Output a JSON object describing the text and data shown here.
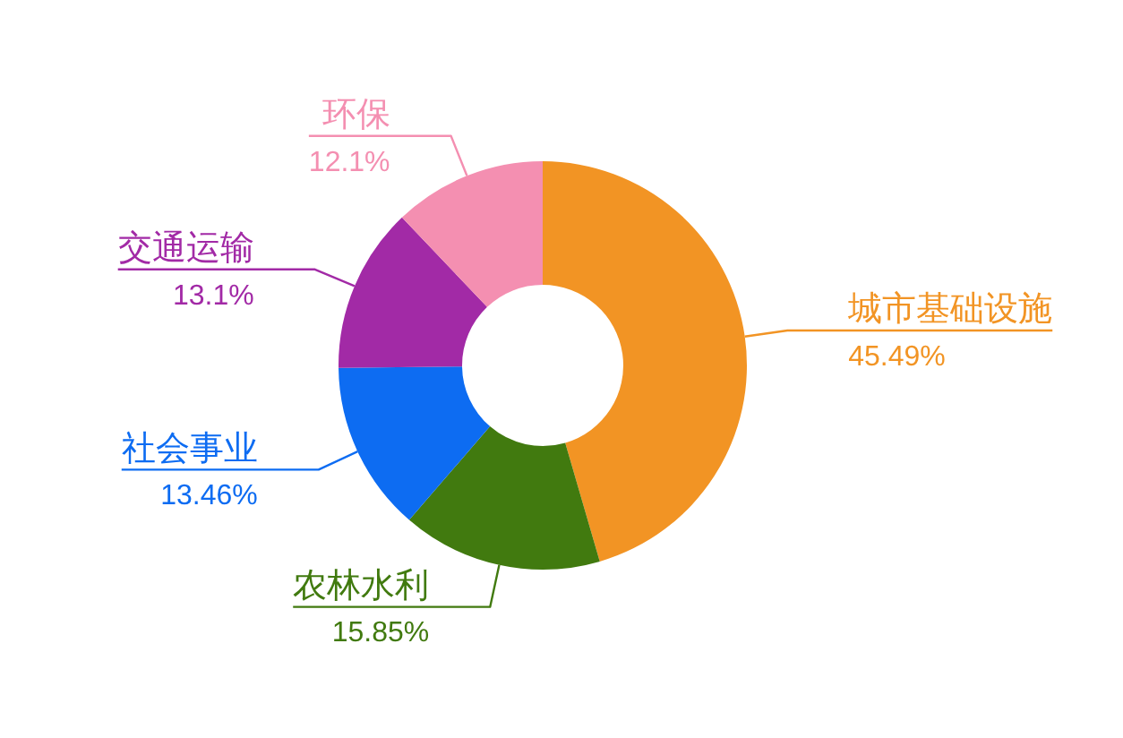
{
  "chart_data": {
    "type": "donut",
    "categories": [
      "城市基础设施",
      "农林水利",
      "社会事业",
      "交通运输",
      "环保"
    ],
    "values": [
      45.49,
      15.85,
      13.46,
      13.1,
      12.1
    ],
    "colors": [
      "#f29424",
      "#417a0f",
      "#0d6cf2",
      "#a22aa6",
      "#f48fb1"
    ],
    "value_labels": [
      "45.49%",
      "15.85%",
      "13.46%",
      "13.1%",
      "12.1%"
    ]
  }
}
